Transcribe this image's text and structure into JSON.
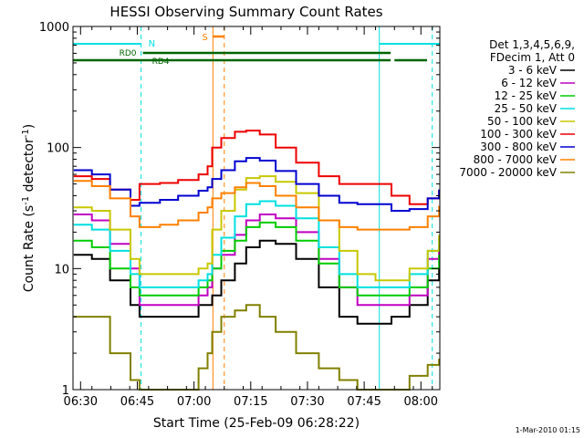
{
  "chart_data": {
    "type": "line",
    "title": "HESSI Observing Summary Count Rates",
    "xlabel": "Start Time (25-Feb-09 06:28:22)",
    "ylabel": "Count Rate (s⁻¹ detector⁻¹)",
    "ylabel_pre": "Count Rate (s",
    "ylabel_mid": " detector",
    "ylabel_post": ")",
    "ylabel_sup": "-1",
    "yscale": "log",
    "xlim": [
      "06:28",
      "08:05"
    ],
    "ylim": [
      1,
      1000
    ],
    "x_ticks": [
      "06:30",
      "06:45",
      "07:00",
      "07:15",
      "07:30",
      "07:45",
      "08:00"
    ],
    "y_ticks": [
      "1",
      "10",
      "100",
      "1000"
    ],
    "legend_header": [
      "Det 1,3,4,5,6,9,",
      "FDecim 1, Att 0"
    ],
    "legend_position": "right",
    "footer": "1-Mar-2010 01:15",
    "x_hours": [
      6.47,
      6.55,
      6.63,
      6.72,
      6.76,
      6.78,
      6.85,
      6.93,
      7.02,
      7.06,
      7.08,
      7.12,
      7.18,
      7.23,
      7.29,
      7.36,
      7.45,
      7.55,
      7.64,
      7.72,
      7.8,
      7.84,
      7.87,
      7.95,
      8.03,
      8.08
    ],
    "series": [
      {
        "name": "3 - 6 keV",
        "color": "#000000",
        "values": [
          13,
          12,
          8,
          5,
          4,
          4,
          4,
          4,
          5,
          5,
          6,
          8,
          11,
          15,
          17,
          16,
          12,
          7,
          4,
          3.5,
          3.5,
          3.5,
          4,
          5,
          8,
          10
        ]
      },
      {
        "name": "6 - 12 keV",
        "color": "#c000c0",
        "values": [
          28,
          25,
          16,
          10,
          5,
          5,
          5,
          5,
          6,
          7,
          10,
          13,
          19,
          25,
          28,
          26,
          20,
          12,
          7,
          5,
          5,
          5,
          5,
          6,
          12,
          16
        ]
      },
      {
        "name": "12 - 25 keV",
        "color": "#00cc00",
        "values": [
          17,
          15,
          10,
          7,
          6,
          6,
          6,
          6,
          7,
          8,
          10,
          14,
          17,
          22,
          24,
          22,
          17,
          11,
          7,
          6,
          6,
          6,
          6,
          7,
          10,
          13
        ]
      },
      {
        "name": "25 - 50 keV",
        "color": "#00e0e0",
        "values": [
          23,
          21,
          14,
          9,
          7,
          7,
          7,
          7,
          8,
          9,
          13,
          18,
          27,
          34,
          36,
          33,
          26,
          15,
          9,
          7,
          7,
          7,
          7,
          9,
          14,
          18
        ]
      },
      {
        "name": "50 - 100 keV",
        "color": "#c8c800",
        "values": [
          32,
          30,
          21,
          12,
          9,
          9,
          9,
          9,
          10,
          11,
          21,
          30,
          45,
          56,
          58,
          52,
          42,
          25,
          14,
          9,
          8,
          8,
          8,
          10,
          14,
          19
        ]
      },
      {
        "name": "100 - 300 keV",
        "color": "#ee0000",
        "values": [
          58,
          55,
          45,
          37,
          50,
          50,
          51,
          54,
          60,
          70,
          100,
          120,
          135,
          138,
          128,
          100,
          75,
          58,
          50,
          50,
          50,
          50,
          40,
          34,
          38,
          45
        ]
      },
      {
        "name": "300 - 800 keV",
        "color": "#0000d0",
        "values": [
          65,
          60,
          45,
          33,
          35,
          35,
          37,
          40,
          44,
          47,
          55,
          65,
          77,
          82,
          78,
          64,
          50,
          40,
          35,
          34,
          34,
          34,
          30,
          31,
          38,
          45
        ]
      },
      {
        "name": "800 - 7000 keV",
        "color": "#ff8000",
        "values": [
          53,
          48,
          38,
          27,
          22,
          22,
          23,
          25,
          29,
          32,
          38,
          42,
          47,
          51,
          48,
          40,
          32,
          25,
          22,
          21,
          21,
          21,
          21,
          22,
          27,
          33
        ]
      },
      {
        "name": "7000 - 20000 keV",
        "color": "#808000",
        "values": [
          4,
          4,
          2,
          1.2,
          1,
          1,
          1,
          1,
          1.5,
          2,
          3,
          4,
          4.5,
          5,
          4,
          3,
          2,
          1.5,
          1.2,
          1,
          1,
          1,
          1,
          1.3,
          1.6,
          1.8
        ]
      }
    ],
    "annotations": {
      "N_label": "N",
      "RD0_label": "RD0",
      "RD4_label": "RD4",
      "S_label": "S"
    },
    "shading": {
      "night_start": [
        "06:28",
        "07:49"
      ],
      "night_end": [
        "06:46",
        "08:03"
      ],
      "saa": [
        "07:05",
        "07:08"
      ]
    }
  }
}
